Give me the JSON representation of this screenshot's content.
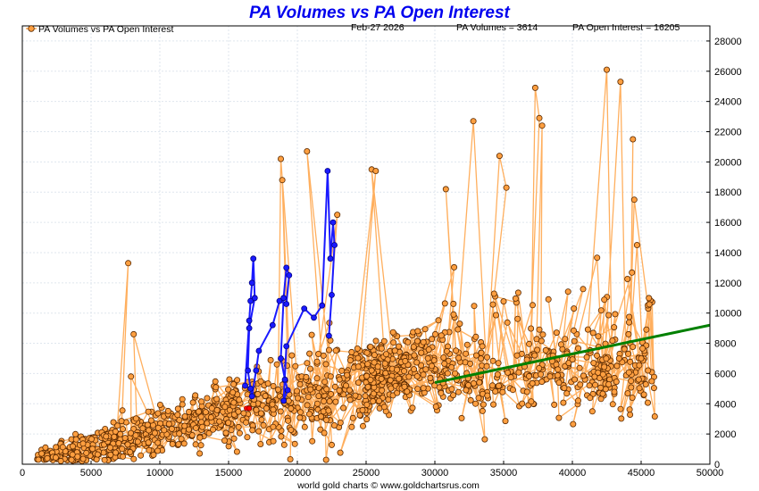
{
  "chart_data": {
    "type": "scatter",
    "title": "PA Volumes vs PA Open Interest",
    "legend_label": "PA Volumes vs PA Open Interest",
    "date_label": "Feb-27  2026",
    "volume_label": "PA Volumes = 3614",
    "oi_label": "PA Open Interest = 16205",
    "credit": "world gold charts © www.goldchartsrus.com",
    "xlim": [
      0,
      50000
    ],
    "ylim": [
      0,
      29000
    ],
    "x_ticks": [
      "0",
      "5000",
      "10000",
      "15000",
      "20000",
      "25000",
      "30000",
      "35000",
      "40000",
      "45000",
      "50000"
    ],
    "y_ticks": [
      "0",
      "2000",
      "4000",
      "6000",
      "8000",
      "10000",
      "12000",
      "14000",
      "16000",
      "18000",
      "20000",
      "22000",
      "24000",
      "26000",
      "28000"
    ],
    "y_tick_values": [
      0,
      2000,
      4000,
      6000,
      8000,
      10000,
      12000,
      14000,
      16000,
      18000,
      20000,
      22000,
      24000,
      26000,
      28000
    ],
    "x_tick_values": [
      0,
      5000,
      10000,
      15000,
      20000,
      25000,
      30000,
      35000,
      40000,
      45000,
      50000
    ],
    "legend_position": "top-left",
    "grid": true,
    "colors": {
      "series": "#ff9f40",
      "series_line": "#ffa64d",
      "recent": "#1a1aff",
      "trend": "#008000",
      "title": "#0000ee"
    },
    "trend_line": {
      "x": [
        30000,
        50000
      ],
      "y": [
        5400,
        9200
      ]
    },
    "recent_series": {
      "x": [
        16200,
        16500,
        16600,
        16700,
        16800,
        16900,
        16500,
        16400,
        16600,
        16700,
        17000,
        17200,
        18200,
        18700,
        19200,
        19400,
        19200,
        19000,
        18800,
        19100,
        19300,
        19000,
        19200,
        20500,
        21200,
        21800,
        22200,
        22400,
        22600,
        22700,
        22500,
        22300
      ],
      "y": [
        5200,
        9500,
        10800,
        12000,
        13600,
        11000,
        9000,
        6200,
        5000,
        4500,
        6200,
        7500,
        9200,
        10800,
        10600,
        12500,
        13000,
        11000,
        7000,
        5600,
        4900,
        4200,
        7800,
        10300,
        9700,
        10500,
        19400,
        13600,
        16000,
        14500,
        11200,
        8500
      ]
    },
    "highlight_points": {
      "x": [
        16300,
        16500
      ],
      "y": [
        3700,
        3700
      ]
    },
    "outlier_series": {
      "x": [
        7700,
        7900,
        8100,
        18800,
        18900,
        20700,
        22900,
        25400,
        25700,
        30800,
        32800,
        34700,
        35200,
        37300,
        37600,
        37800,
        42500,
        43500,
        44400,
        44500,
        44700,
        45000,
        45500
      ],
      "y": [
        13300,
        5800,
        8600,
        20200,
        18800,
        20700,
        16500,
        19500,
        19400,
        18200,
        22700,
        20400,
        18300,
        24900,
        22900,
        22400,
        26100,
        25300,
        21500,
        17500,
        14500,
        7000,
        6200
      ]
    }
  }
}
